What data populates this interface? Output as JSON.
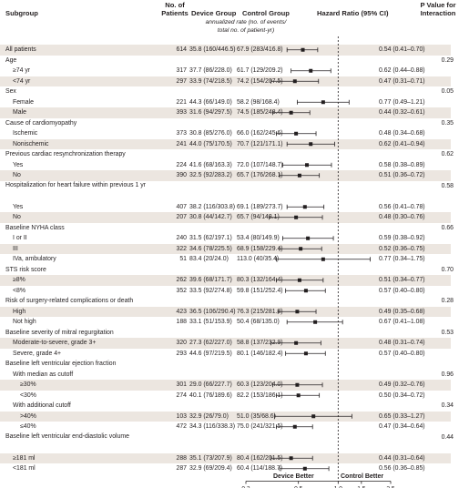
{
  "headers": {
    "subgroup": "Subgroup",
    "patients_l1": "No. of",
    "patients_l2": "Patients",
    "device": "Device Group",
    "control": "Control Group",
    "rate_note_l1": "annualized rate (no. of events/",
    "rate_note_l2": "total no. of patient-yr)",
    "hazard": "Hazard Ratio (95% CI)",
    "pvalue_l1": "P Value for",
    "pvalue_l2": "Interaction"
  },
  "axis": {
    "device_better": "Device Better",
    "control_better": "Control Better"
  },
  "chart_data": {
    "type": "forest",
    "xscale": "log",
    "xlim": [
      0.2,
      2.5
    ],
    "xticks": [
      0.2,
      0.5,
      1.0,
      1.5,
      2.5
    ],
    "xtick_labels": [
      "0.2",
      "0.5",
      "1.0",
      "1.5",
      "2.5"
    ],
    "reference_line": 1.0,
    "rows": [
      {
        "label": "All patients",
        "level": 0,
        "n": "614",
        "device": "35.8 (160/446.5)",
        "control": "67.9 (283/416.8)",
        "hr_text": "0.54 (0.41–0.70)",
        "hr": 0.54,
        "lo": 0.41,
        "hi": 0.7,
        "p": ""
      },
      {
        "label": "Age",
        "level": 0,
        "p": "0.29"
      },
      {
        "label": "≥74 yr",
        "level": 1,
        "n": "317",
        "device": "37.7 (86/228.0)",
        "control": "61.7 (129/209.2)",
        "hr_text": "0.62 (0.44–0.88)",
        "hr": 0.62,
        "lo": 0.44,
        "hi": 0.88
      },
      {
        "label": "<74 yr",
        "level": 1,
        "n": "297",
        "device": "33.9 (74/218.5)",
        "control": "74.2 (154/207.5)",
        "hr_text": "0.47 (0.31–0.71)",
        "hr": 0.47,
        "lo": 0.31,
        "hi": 0.71
      },
      {
        "label": "Sex",
        "level": 0,
        "p": "0.05"
      },
      {
        "label": "Female",
        "level": 1,
        "n": "221",
        "device": "44.3 (66/149.0)",
        "control": "58.2 (98/168.4)",
        "hr_text": "0.77 (0.49–1.21)",
        "hr": 0.77,
        "lo": 0.49,
        "hi": 1.21
      },
      {
        "label": "Male",
        "level": 1,
        "n": "393",
        "device": "31.6 (94/297.5)",
        "control": "74.5 (185/248.4)",
        "hr_text": "0.44 (0.32–0.61)",
        "hr": 0.44,
        "lo": 0.32,
        "hi": 0.61
      },
      {
        "label": "Cause of cardiomyopathy",
        "level": 0,
        "p": "0.35"
      },
      {
        "label": "Ischemic",
        "level": 1,
        "n": "373",
        "device": "30.8 (85/276.0)",
        "control": "66.0 (162/245.6)",
        "hr_text": "0.48 (0.34–0.68)",
        "hr": 0.48,
        "lo": 0.34,
        "hi": 0.68
      },
      {
        "label": "Nonischemic",
        "level": 1,
        "n": "241",
        "device": "44.0 (75/170.5)",
        "control": "70.7 (121/171.1)",
        "hr_text": "0.62 (0.41–0.94)",
        "hr": 0.62,
        "lo": 0.41,
        "hi": 0.94
      },
      {
        "label": "Previous cardiac resynchronization therapy",
        "level": 0,
        "p": "0.62"
      },
      {
        "label": "Yes",
        "level": 1,
        "n": "224",
        "device": "41.6 (68/163.3)",
        "control": "72.0 (107/148.7)",
        "hr_text": "0.58 (0.38–0.89)",
        "hr": 0.58,
        "lo": 0.38,
        "hi": 0.89
      },
      {
        "label": "No",
        "level": 1,
        "n": "390",
        "device": "32.5 (92/283.2)",
        "control": "65.7 (176/268.1)",
        "hr_text": "0.51 (0.36–0.72)",
        "hr": 0.51,
        "lo": 0.36,
        "hi": 0.72
      },
      {
        "label": "Hospitalization for heart failure within previous 1 yr",
        "level": 0,
        "double": true,
        "p": "0.58"
      },
      {
        "label": "Yes",
        "level": 1,
        "n": "407",
        "device": "38.2 (116/303.8)",
        "control": "69.1 (189/273.7)",
        "hr_text": "0.56 (0.41–0.78)",
        "hr": 0.56,
        "lo": 0.41,
        "hi": 0.78
      },
      {
        "label": "No",
        "level": 1,
        "n": "207",
        "device": "30.8 (44/142.7)",
        "control": "65.7 (94/143.1)",
        "hr_text": "0.48 (0.30–0.76)",
        "hr": 0.48,
        "lo": 0.3,
        "hi": 0.76
      },
      {
        "label": "Baseline NYHA class",
        "level": 0,
        "p": "0.66"
      },
      {
        "label": "I or II",
        "level": 1,
        "n": "240",
        "device": "31.5 (62/197.1)",
        "control": "53.4 (80/149.9)",
        "hr_text": "0.59 (0.38–0.92)",
        "hr": 0.59,
        "lo": 0.38,
        "hi": 0.92
      },
      {
        "label": "III",
        "level": 1,
        "n": "322",
        "device": "34.6 (78/225.5)",
        "control": "68.9 (158/229.4)",
        "hr_text": "0.52 (0.36–0.75)",
        "hr": 0.52,
        "lo": 0.36,
        "hi": 0.75
      },
      {
        "label": "IVa, ambulatory",
        "level": 1,
        "n": "51",
        "device": "83.4 (20/24.0)",
        "control": "113.0 (40/35.4)",
        "hr_text": "0.77 (0.34–1.75)",
        "hr": 0.77,
        "lo": 0.34,
        "hi": 1.75
      },
      {
        "label": "STS risk score",
        "level": 0,
        "p": "0.70"
      },
      {
        "label": "≥8%",
        "level": 1,
        "n": "262",
        "device": "39.6 (68/171.7)",
        "control": "80.3 (132/164.4)",
        "hr_text": "0.51 (0.34–0.77)",
        "hr": 0.51,
        "lo": 0.34,
        "hi": 0.77
      },
      {
        "label": "<8%",
        "level": 1,
        "n": "352",
        "device": "33.5 (92/274.8)",
        "control": "59.8 (151/252.4)",
        "hr_text": "0.57 (0.40–0.80)",
        "hr": 0.57,
        "lo": 0.4,
        "hi": 0.8
      },
      {
        "label": "Risk of surgery-related complications or death",
        "level": 0,
        "p": "0.28"
      },
      {
        "label": "High",
        "level": 1,
        "n": "423",
        "device": "36.5 (106/290.4)",
        "control": "76.3 (215/281.8)",
        "hr_text": "0.49 (0.35–0.68)",
        "hr": 0.49,
        "lo": 0.35,
        "hi": 0.68
      },
      {
        "label": "Not high",
        "level": 1,
        "n": "188",
        "device": "33.1 (51/153.9)",
        "control": "50.4 (68/135.0)",
        "hr_text": "0.67 (0.41–1.08)",
        "hr": 0.67,
        "lo": 0.41,
        "hi": 1.08
      },
      {
        "label": "Baseline severity of mitral regurgitation",
        "level": 0,
        "p": "0.53"
      },
      {
        "label": "Moderate-to-severe, grade 3+",
        "level": 1,
        "n": "320",
        "device": "27.3 (62/227.0)",
        "control": "58.8 (137/232.9)",
        "hr_text": "0.48 (0.31–0.74)",
        "hr": 0.48,
        "lo": 0.31,
        "hi": 0.74
      },
      {
        "label": "Severe, grade 4+",
        "level": 1,
        "n": "293",
        "device": "44.6 (97/219.5)",
        "control": "80.1 (146/182.4)",
        "hr_text": "0.57 (0.40–0.80)",
        "hr": 0.57,
        "lo": 0.4,
        "hi": 0.8
      },
      {
        "label": "Baseline left ventricular ejection fraction",
        "level": 0,
        "p": ""
      },
      {
        "label": "With median as cutoff",
        "level": 1,
        "p": "0.96"
      },
      {
        "label": "≥30%",
        "level": 2,
        "n": "301",
        "device": "29.0 (66/227.7)",
        "control": "60.3 (123/204.0)",
        "hr_text": "0.49 (0.32–0.76)",
        "hr": 0.49,
        "lo": 0.32,
        "hi": 0.76
      },
      {
        "label": "<30%",
        "level": 2,
        "n": "274",
        "device": "40.1 (76/189.6)",
        "control": "82.2 (153/186.1)",
        "hr_text": "0.50 (0.34–0.72)",
        "hr": 0.5,
        "lo": 0.34,
        "hi": 0.72
      },
      {
        "label": "With additional cutoff",
        "level": 1,
        "p": "0.34"
      },
      {
        "label": ">40%",
        "level": 2,
        "n": "103",
        "device": "32.9 (26/79.0)",
        "control": "51.0 (35/68.6)",
        "hr_text": "0.65 (0.33–1.27)",
        "hr": 0.65,
        "lo": 0.33,
        "hi": 1.27
      },
      {
        "label": "≤40%",
        "level": 2,
        "n": "472",
        "device": "34.3 (116/338.3)",
        "control": "75.0 (241/321.5)",
        "hr_text": "0.47 (0.34–0.64)",
        "hr": 0.47,
        "lo": 0.34,
        "hi": 0.64
      },
      {
        "label": "Baseline left ventricular end-diastolic volume",
        "level": 0,
        "double": true,
        "p": "0.44"
      },
      {
        "label": "≥181 ml",
        "level": 1,
        "n": "288",
        "device": "35.1 (73/207.9)",
        "control": "80.4 (162/201.5)",
        "hr_text": "0.44 (0.31–0.64)",
        "hr": 0.44,
        "lo": 0.31,
        "hi": 0.64
      },
      {
        "label": "<181 ml",
        "level": 1,
        "n": "287",
        "device": "32.9 (69/209.4)",
        "control": "60.4 (114/188.7)",
        "hr_text": "0.56 (0.36–0.85)",
        "hr": 0.56,
        "lo": 0.36,
        "hi": 0.85
      }
    ]
  }
}
